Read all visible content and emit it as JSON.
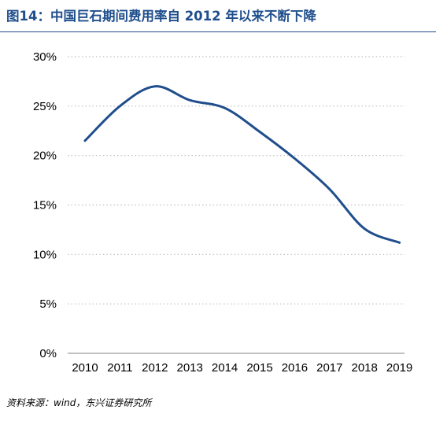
{
  "figure": {
    "title": "图14：中国巨石期间费用率自 2012 年以来不断下降",
    "source": "资料来源：wind，东兴证券研究所"
  },
  "chart_data": {
    "type": "line",
    "title": "",
    "xlabel": "",
    "ylabel": "",
    "x": [
      "2010",
      "2011",
      "2012",
      "2013",
      "2014",
      "2015",
      "2016",
      "2017",
      "2018",
      "2019"
    ],
    "series": [
      {
        "values": [
          21.5,
          25.0,
          27.0,
          25.6,
          24.8,
          22.4,
          19.7,
          16.6,
          12.6,
          11.2
        ]
      }
    ],
    "y_ticks": [
      {
        "value": 0,
        "label": "0%"
      },
      {
        "value": 5,
        "label": "5%"
      },
      {
        "value": 10,
        "label": "10%"
      },
      {
        "value": 15,
        "label": "15%"
      },
      {
        "value": 20,
        "label": "20%"
      },
      {
        "value": 25,
        "label": "25%"
      },
      {
        "value": 30,
        "label": "30%"
      }
    ],
    "ylim": [
      0,
      30
    ],
    "grid": true,
    "legend": "none",
    "line_color": "#1f4e8c",
    "grid_color": "#bfbfbf",
    "axis_color": "#808080"
  }
}
